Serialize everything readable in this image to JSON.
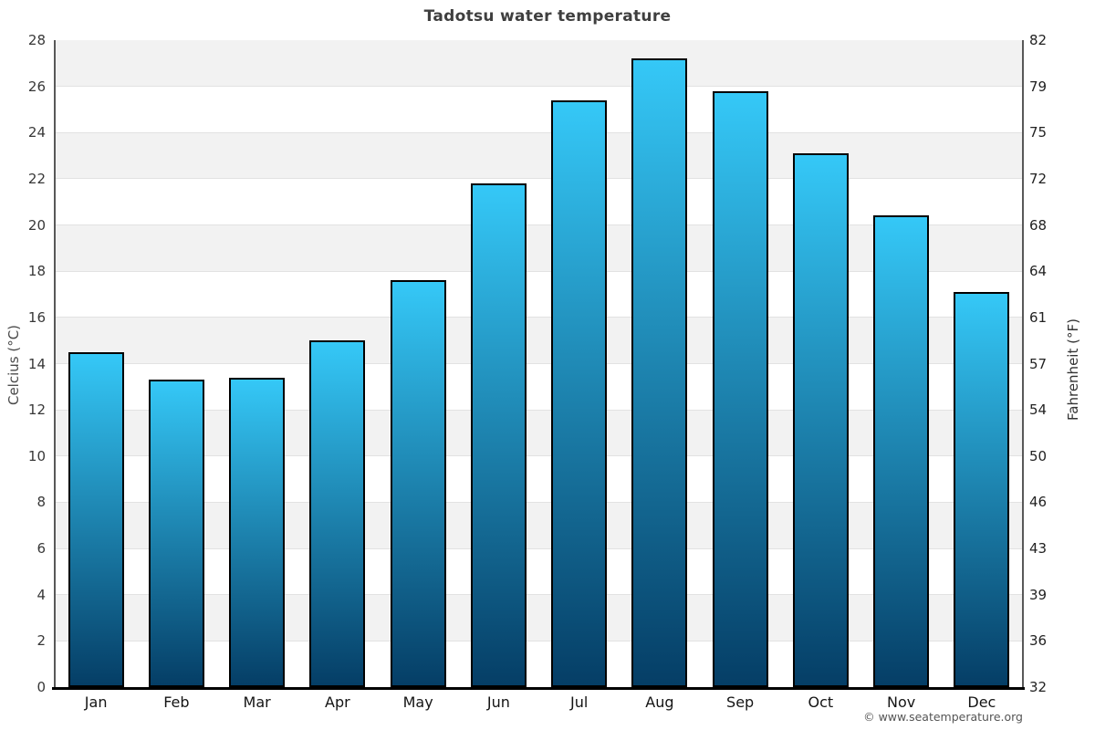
{
  "chart_data": {
    "type": "bar",
    "title": "Tadotsu water temperature",
    "categories": [
      "Jan",
      "Feb",
      "Mar",
      "Apr",
      "May",
      "Jun",
      "Jul",
      "Aug",
      "Sep",
      "Oct",
      "Nov",
      "Dec"
    ],
    "values": [
      14.5,
      13.3,
      13.4,
      15.0,
      17.6,
      21.8,
      25.4,
      27.2,
      25.8,
      23.1,
      20.4,
      17.1
    ],
    "xlabel": "",
    "ylabel_left": "Celcius (°C)",
    "ylabel_right": "Fahrenheit (°F)",
    "ylim": [
      0,
      28
    ],
    "ytick_step": 2,
    "yticks_left": [
      28,
      26,
      24,
      22,
      20,
      18,
      16,
      14,
      12,
      10,
      8,
      6,
      4,
      2,
      0
    ],
    "yticks_right": [
      "82",
      "79",
      "75",
      "72",
      "68",
      "64",
      "61",
      "57",
      "54",
      "50",
      "46",
      "43",
      "39",
      "36",
      "32"
    ],
    "legend": "none",
    "grid": "horizontal alternating shaded bands every 2°C",
    "colors": {
      "bar_gradient_top": "#35c8f7",
      "bar_gradient_bottom": "#053e66",
      "bar_border": "#000000",
      "band_shaded": "#f2f2f2",
      "band_plain": "#ffffff",
      "gridline": "#e2e2e2",
      "axis_line": "#585858",
      "x_axis_line": "#000000",
      "title_text": "#3f3f3f"
    }
  },
  "footer": {
    "text": "© www.seatemperature.org"
  }
}
